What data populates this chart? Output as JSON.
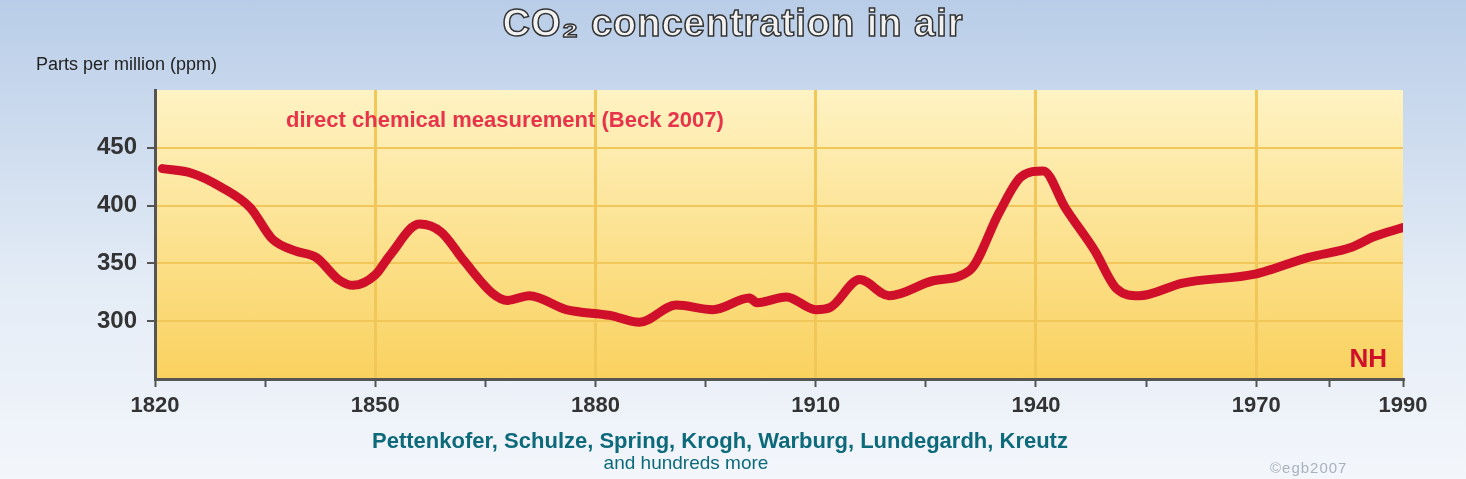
{
  "chart_data": {
    "type": "line",
    "title": "CO₂ concentration in air",
    "ylabel": "Parts per million (ppm)",
    "annotations": [
      "direct chemical measurement (Beck 2007)",
      "NH",
      "Pettenkofer, Schulze, Spring, Krogh, Warburg, Lundegardh, Kreutz",
      "and hundreds more",
      "©egb2007"
    ],
    "series": [
      {
        "color": "#d0102a",
        "x": [
          1821,
          1825,
          1829,
          1833,
          1836,
          1839,
          1842,
          1845,
          1847,
          1850,
          1852,
          1856,
          1859,
          1862,
          1866,
          1868,
          1871,
          1876,
          1882,
          1886,
          1891,
          1896,
          1901,
          1902,
          1906,
          1910,
          1912,
          1916,
          1920,
          1926,
          1931,
          1935,
          1938,
          1941,
          1944,
          1948,
          1951,
          1954,
          1960,
          1970,
          1977,
          1983,
          1986,
          1990
        ],
        "values": [
          432,
          428,
          416,
          398,
          371,
          361,
          355,
          336,
          331,
          340,
          357,
          384,
          377,
          353,
          324,
          318,
          322,
          310,
          305,
          299,
          314,
          310,
          320,
          316,
          321,
          310,
          312,
          336,
          322,
          335,
          344,
          394,
          425,
          430,
          398,
          361,
          328,
          322,
          333,
          341,
          355,
          364,
          373,
          381
        ]
      }
    ],
    "xlim": [
      1820,
      1990
    ],
    "xticks": [
      1820,
      {
        "value": 1835,
        "label": null
      },
      1850,
      {
        "value": 1865,
        "label": null
      },
      1880,
      {
        "value": 1895,
        "label": null
      },
      1910,
      {
        "value": 1925,
        "label": null
      },
      1940,
      {
        "value": 1955,
        "label": null
      },
      1970,
      {
        "value": 1980,
        "label": null
      },
      1990
    ],
    "ylim": [
      250,
      500
    ],
    "yticks": [
      300,
      350,
      400,
      450
    ],
    "grid": true,
    "legend": false,
    "marker": "none",
    "line_style": "solid"
  }
}
